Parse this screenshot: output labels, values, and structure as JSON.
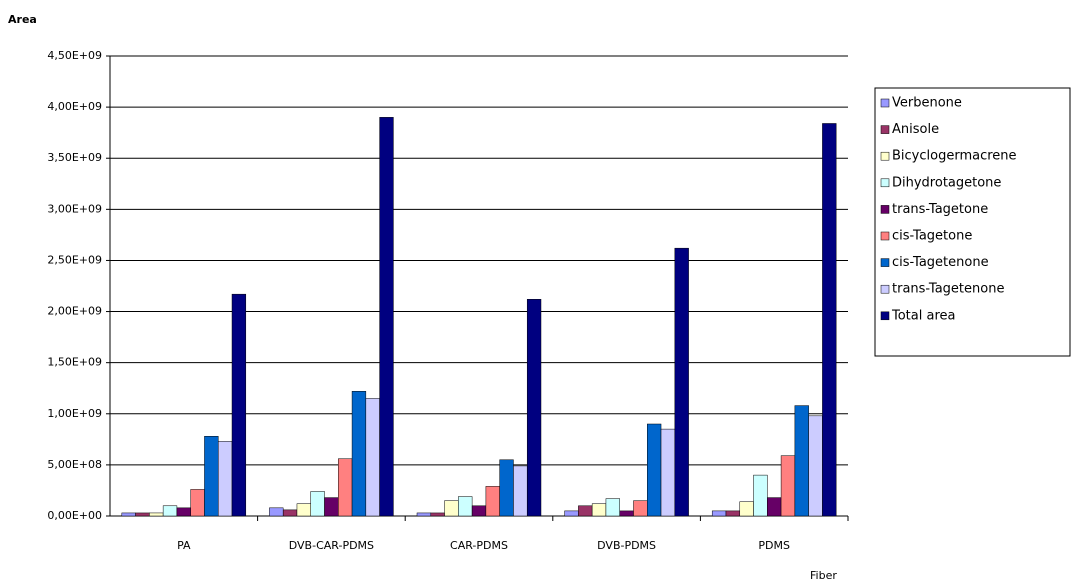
{
  "chart_data": {
    "type": "bar",
    "title": "Area",
    "x_label": "Fiber",
    "categories": [
      "PA",
      "DVB-CAR-PDMS",
      "CAR-PDMS",
      "DVB-PDMS",
      "PDMS"
    ],
    "series": [
      {
        "name": "Verbenone",
        "color": "#9999ff",
        "values": [
          30000000,
          80000000,
          30000000,
          50000000,
          50000000
        ]
      },
      {
        "name": "Anisole",
        "color": "#993366",
        "values": [
          30000000,
          60000000,
          30000000,
          100000000,
          50000000
        ]
      },
      {
        "name": "Bicyclogermacrene",
        "color": "#ffffcc",
        "values": [
          30000000,
          120000000,
          150000000,
          120000000,
          140000000
        ]
      },
      {
        "name": "Dihydrotagetone",
        "color": "#ccffff",
        "values": [
          100000000,
          240000000,
          190000000,
          170000000,
          400000000
        ]
      },
      {
        "name": "trans-Tagetone",
        "color": "#660066",
        "values": [
          80000000,
          180000000,
          100000000,
          50000000,
          180000000
        ]
      },
      {
        "name": "cis-Tagetone",
        "color": "#ff8080",
        "values": [
          260000000,
          560000000,
          290000000,
          150000000,
          590000000
        ]
      },
      {
        "name": "cis-Tagetenone",
        "color": "#0066cc",
        "values": [
          780000000,
          1220000000,
          550000000,
          900000000,
          1080000000
        ]
      },
      {
        "name": "trans-Tagetenone",
        "color": "#ccccff",
        "values": [
          730000000,
          1150000000,
          490000000,
          850000000,
          980000000
        ]
      },
      {
        "name": "Total area",
        "color": "#000080",
        "values": [
          2170000000,
          3900000000,
          2120000000,
          2620000000,
          3840000000
        ]
      }
    ],
    "ylim": [
      0,
      4500000000
    ],
    "yticks": [
      {
        "value": 0,
        "label": "0,00E+00"
      },
      {
        "value": 500000000,
        "label": "5,00E+08"
      },
      {
        "value": 1000000000,
        "label": "1,00E+09"
      },
      {
        "value": 1500000000,
        "label": "1,50E+09"
      },
      {
        "value": 2000000000,
        "label": "2,00E+09"
      },
      {
        "value": 2500000000,
        "label": "2,50E+09"
      },
      {
        "value": 3000000000,
        "label": "3,00E+09"
      },
      {
        "value": 3500000000,
        "label": "3,50E+09"
      },
      {
        "value": 4000000000,
        "label": "4,00E+09"
      },
      {
        "value": 4500000000,
        "label": "4,50E+09"
      }
    ],
    "grid": true,
    "legend": "right"
  }
}
